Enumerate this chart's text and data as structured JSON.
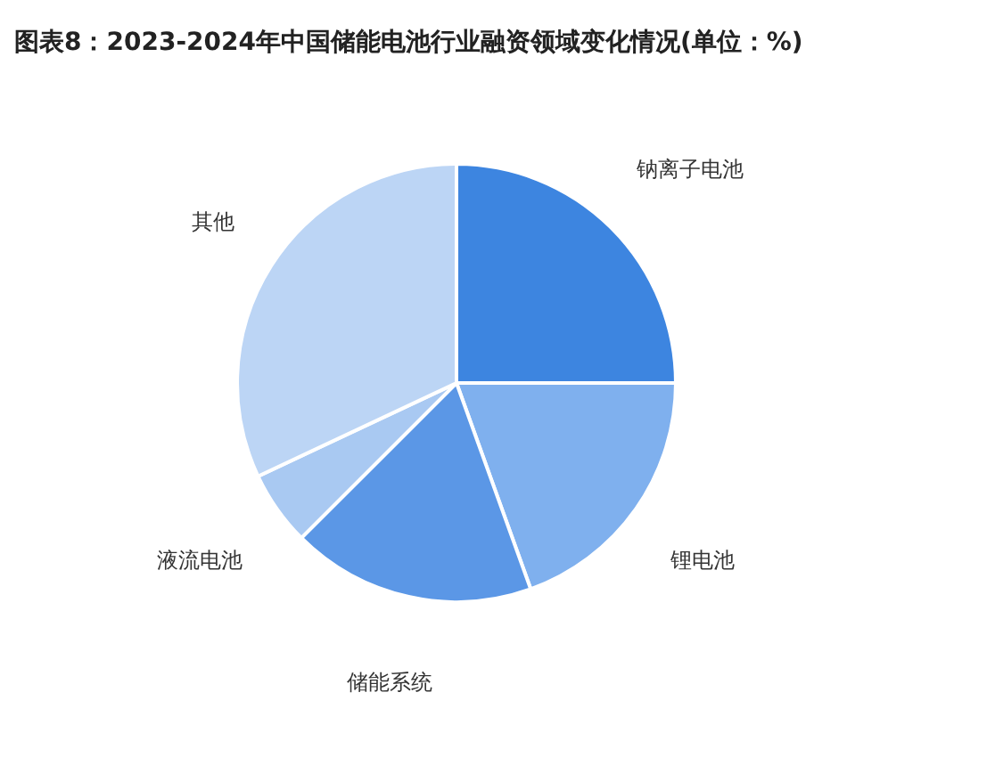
{
  "chart_data": {
    "type": "pie",
    "title": "图表8：2023-2024年中国储能电池行业融资领域变化情况(单位：%)",
    "categories": [
      "钠离子电池",
      "锂电池",
      "储能系统",
      "液流电池",
      "其他"
    ],
    "values": [
      25,
      19.5,
      18,
      5.5,
      32
    ],
    "colors": [
      "#3d85e0",
      "#7fb0ee",
      "#5b97e6",
      "#a9c9f2",
      "#bcd5f5"
    ]
  }
}
